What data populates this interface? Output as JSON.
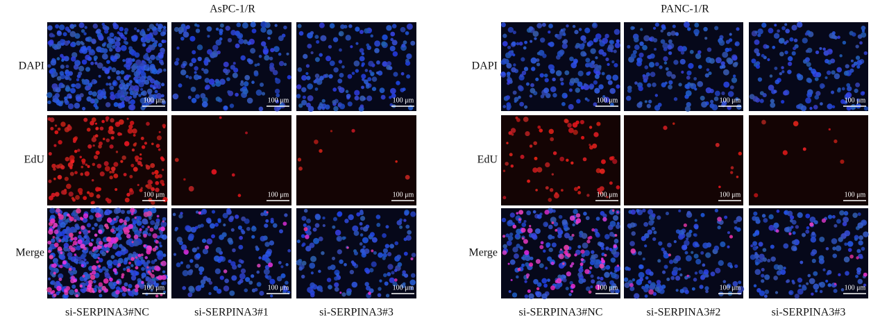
{
  "panels": [
    {
      "title": "AsPC-1/R",
      "rows": [
        "DAPI",
        "EdU",
        "Merge"
      ],
      "columns": [
        "si-SERPINA3#NC",
        "si-SERPINA3#1",
        "si-SERPINA3#3"
      ],
      "scale_bar": "100 μm"
    },
    {
      "title": "PANC-1/R",
      "rows": [
        "DAPI",
        "EdU",
        "Merge"
      ],
      "columns": [
        "si-SERPINA3#NC",
        "si-SERPINA3#2",
        "si-SERPINA3#3"
      ],
      "scale_bar": "100 μm"
    }
  ]
}
